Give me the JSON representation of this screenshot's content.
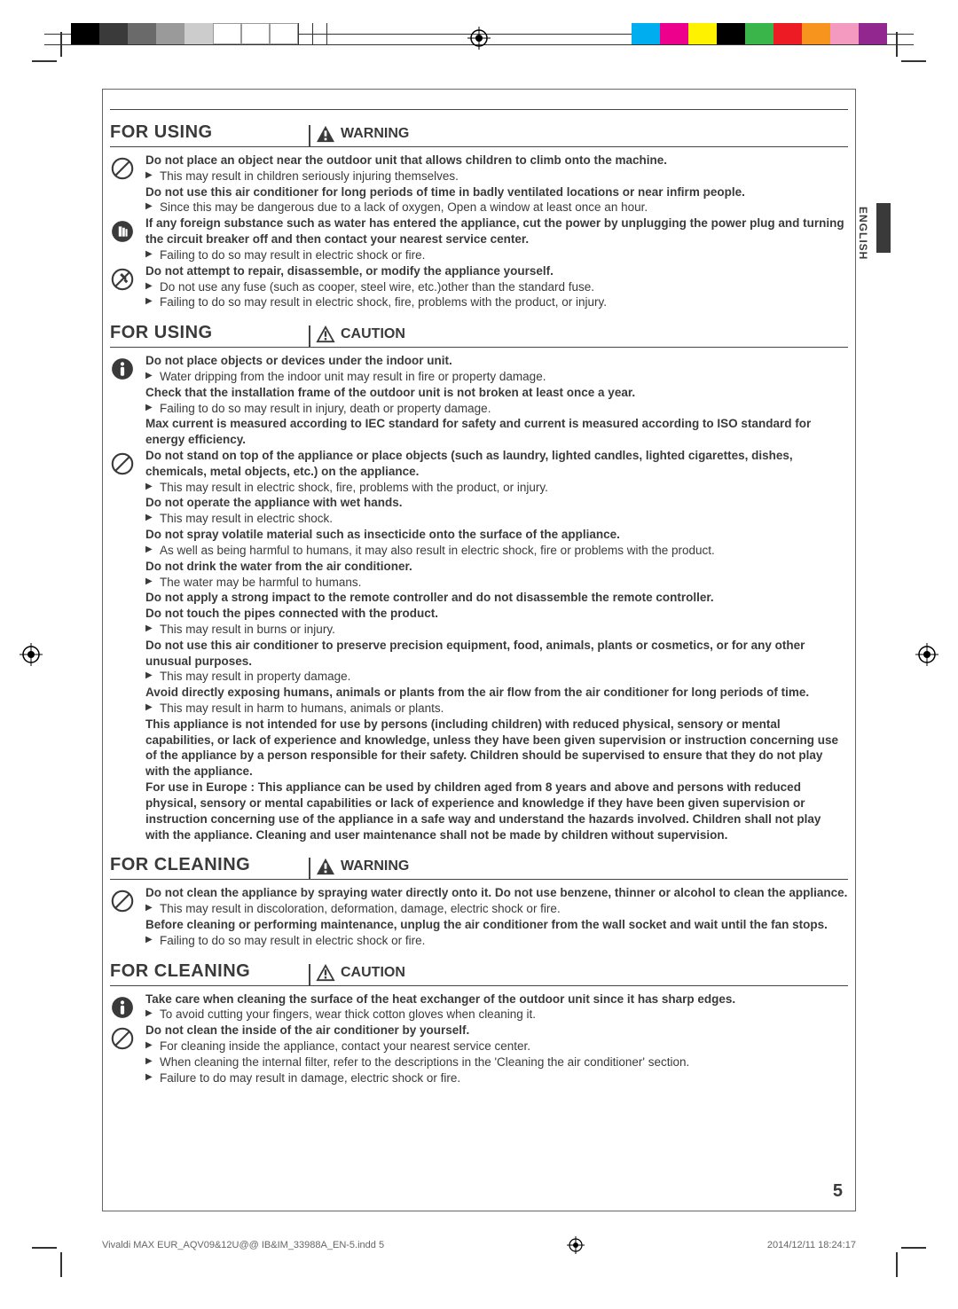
{
  "colorbar": {
    "left": [
      "#000000",
      "#3a3a3a",
      "#6a6a6a",
      "#9a9a9a",
      "#cccccc",
      "#ffffff",
      "#ffffff",
      "#ffffff"
    ],
    "right": [
      "#00aeef",
      "#ec008c",
      "#fff200",
      "#000000",
      "#39b54a",
      "#ed1c24",
      "#f7941e",
      "#f49ac1",
      "#92278f"
    ]
  },
  "language_tab": "ENGLISH",
  "sections": [
    {
      "heading": "FOR USING",
      "label": "WARNING",
      "label_icon": "warn-fill",
      "blocks": [
        {
          "icon": "prohibit",
          "lines": [
            {
              "b": true,
              "t": "Do not place an object near the outdoor unit that allows children to climb onto the machine."
            },
            {
              "b": false,
              "t": "This may result in children seriously injuring themselves."
            },
            {
              "b": true,
              "t": "Do not use this air conditioner for long periods of time in badly ventilated locations or near infirm people."
            },
            {
              "b": false,
              "t": "Since this may be dangerous due to a lack of oxygen, Open a window at least once an hour."
            }
          ]
        },
        {
          "icon": "info-hand",
          "lines": [
            {
              "b": true,
              "t": "If any foreign substance such as water has entered the appliance, cut the power by unplugging the power plug and turning the circuit breaker off and then contact your nearest service center."
            },
            {
              "b": false,
              "t": "Failing to do so may result in electric shock or fire."
            }
          ]
        },
        {
          "icon": "no-disassemble",
          "lines": [
            {
              "b": true,
              "t": "Do not attempt to repair, disassemble, or modify the appliance yourself."
            },
            {
              "b": false,
              "t": "Do not use any fuse (such as cooper, steel wire, etc.)other than the standard fuse."
            },
            {
              "b": false,
              "t": "Failing to do so may result in electric shock, fire, problems with the product, or injury."
            }
          ]
        }
      ]
    },
    {
      "heading": "FOR USING",
      "label": "CAUTION",
      "label_icon": "warn-outline",
      "blocks": [
        {
          "icon": "mandatory",
          "lines": [
            {
              "b": true,
              "t": "Do not place objects or devices under the indoor unit."
            },
            {
              "b": false,
              "t": "Water dripping from the indoor unit may result in fire or property damage."
            },
            {
              "b": true,
              "t": "Check that the installation frame of the outdoor unit is not broken at least once a year."
            },
            {
              "b": false,
              "t": "Failing to do so may result in injury, death or property damage."
            },
            {
              "b": true,
              "t": "Max current is measured according to IEC standard for safety and current is measured according to ISO standard for energy efficiency."
            }
          ]
        },
        {
          "icon": "prohibit",
          "lines": [
            {
              "b": true,
              "t": "Do not stand on top of the appliance or place objects (such as laundry, lighted candles, lighted cigarettes, dishes, chemicals, metal objects, etc.) on the appliance."
            },
            {
              "b": false,
              "t": "This may result in electric shock, fire, problems with the product, or injury."
            },
            {
              "b": true,
              "t": "Do not operate the appliance with wet hands."
            },
            {
              "b": false,
              "t": "This may result in electric shock."
            },
            {
              "b": true,
              "t": "Do not spray volatile material such as insecticide onto the surface of the appliance."
            },
            {
              "b": false,
              "t": "As well as being harmful to humans, it may also result in electric shock, fire or problems with the product."
            },
            {
              "b": true,
              "t": "Do not drink the water from the air conditioner."
            },
            {
              "b": false,
              "t": "The water may be harmful to humans."
            },
            {
              "b": true,
              "t": "Do not apply a strong impact to the remote controller and do not disassemble the remote controller."
            },
            {
              "b": true,
              "t": "Do not touch the pipes connected with the product."
            },
            {
              "b": false,
              "t": "This may result in burns or injury."
            },
            {
              "b": true,
              "t": "Do not use this air conditioner to preserve precision equipment, food, animals, plants or cosmetics, or for any other unusual purposes."
            },
            {
              "b": false,
              "t": "This may result in property damage."
            },
            {
              "b": true,
              "t": "Avoid directly exposing humans, animals or plants from the air flow from the air conditioner for long periods of time."
            },
            {
              "b": false,
              "t": "This may result in harm to humans, animals or plants."
            },
            {
              "b": true,
              "t": "This appliance is not intended for use by persons (including children) with reduced physical, sensory or mental capabilities, or lack of experience and knowledge, unless they have been given supervision or instruction concerning use of the appliance by a person responsible for their safety. Children should be supervised to ensure that they do not play with the appliance."
            },
            {
              "b": true,
              "t": "For use in Europe : This appliance can be used by children aged from 8 years and above and persons with reduced physical, sensory or mental capabilities or lack of experience and knowledge if they have been given supervision or instruction concerning use of the appliance in a safe way and understand the hazards involved. Children shall not play with the appliance. Cleaning and user maintenance shall not be made by children without supervision."
            }
          ]
        }
      ]
    },
    {
      "heading": "FOR CLEANING",
      "label": "WARNING",
      "label_icon": "warn-fill",
      "blocks": [
        {
          "icon": "prohibit",
          "lines": [
            {
              "b": true,
              "t": "Do not clean the appliance by spraying water directly onto it. Do not use benzene, thinner or alcohol to clean the appliance."
            },
            {
              "b": false,
              "t": "This may result in discoloration, deformation, damage, electric shock or fire."
            },
            {
              "b": true,
              "t": "Before cleaning or performing maintenance, unplug the air conditioner from the wall socket and wait until the fan stops."
            },
            {
              "b": false,
              "t": "Failing to do so may result in electric shock or fire."
            }
          ]
        }
      ]
    },
    {
      "heading": "FOR CLEANING",
      "label": "CAUTION",
      "label_icon": "warn-outline",
      "blocks": [
        {
          "icon": "mandatory",
          "lines": [
            {
              "b": true,
              "t": "Take care when cleaning the surface of the heat exchanger of the outdoor unit since it has sharp edges."
            },
            {
              "b": false,
              "t": "To avoid cutting your fingers, wear thick cotton gloves when cleaning it."
            }
          ]
        },
        {
          "icon": "prohibit",
          "lines": [
            {
              "b": true,
              "t": "Do not clean the inside of the air conditioner by yourself."
            },
            {
              "b": false,
              "t": "For cleaning inside the appliance, contact your nearest service center."
            },
            {
              "b": false,
              "t": "When cleaning the internal filter, refer to the descriptions in the 'Cleaning the air conditioner' section."
            },
            {
              "b": false,
              "t": "Failure to do may result in damage, electric shock or fire."
            }
          ]
        }
      ]
    }
  ],
  "page_number": "5",
  "footer": {
    "left": "Vivaldi MAX EUR_AQV09&12U@@ IB&IM_33988A_EN-5.indd   5",
    "right": "2014/12/11   18:24:17"
  }
}
